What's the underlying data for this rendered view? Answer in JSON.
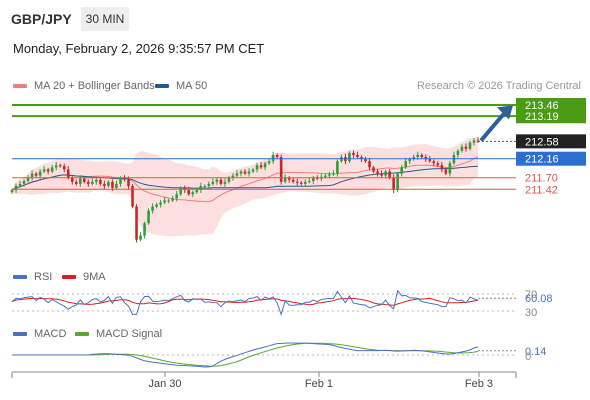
{
  "header": {
    "symbol": "GBP/JPY",
    "timeframe": "30 MIN",
    "datetime": "Monday, February 2, 2026 9:35:57 PM CET"
  },
  "legend": {
    "ma20": {
      "label": "MA 20 + Bollinger Bands",
      "color": "#f07c7c"
    },
    "ma50": {
      "label": "MA 50",
      "color": "#1f5a96"
    },
    "credit": "Research © 2026 Trading Central"
  },
  "rsi_legend": {
    "rsi": "RSI",
    "ma": "9MA"
  },
  "macd_legend": {
    "macd": "MACD",
    "signal": "MACD Signal"
  },
  "colors": {
    "up": "#2e9e3a",
    "down": "#c62828",
    "target": "#4a9c12",
    "pivot": "#2c6fd1",
    "support": "#e0554f",
    "current": "#222222",
    "arrow": "#2d5fa0"
  },
  "chart_data": [
    {
      "type": "candlestick",
      "ylim": [
        209.66,
        213.75
      ],
      "x_ticks": [
        "Jan 30",
        "Feb 1",
        "Feb 3"
      ],
      "levels": {
        "targets": [
          "213.46",
          "213.19"
        ],
        "current": "212.58",
        "pivot": "212.16",
        "supports": [
          "211.70",
          "211.42"
        ]
      },
      "closes": [
        211.4,
        211.5,
        211.55,
        211.62,
        211.7,
        211.8,
        211.75,
        211.85,
        211.9,
        211.85,
        211.95,
        212.0,
        211.98,
        211.9,
        211.7,
        211.6,
        211.55,
        211.68,
        211.6,
        211.55,
        211.6,
        211.65,
        211.55,
        211.5,
        211.6,
        211.45,
        211.55,
        211.7,
        211.65,
        211.5,
        211.0,
        210.2,
        210.3,
        210.6,
        210.9,
        211.0,
        211.05,
        211.1,
        211.15,
        211.15,
        211.2,
        211.3,
        211.45,
        211.4,
        211.3,
        211.35,
        211.4,
        211.5,
        211.5,
        211.55,
        211.6,
        211.65,
        211.55,
        211.6,
        211.7,
        211.75,
        211.8,
        211.85,
        211.8,
        211.85,
        211.9,
        212.0,
        211.95,
        212.05,
        212.1,
        212.25,
        212.2,
        211.6,
        211.7,
        211.65,
        211.6,
        211.58,
        211.55,
        211.6,
        211.62,
        211.7,
        211.68,
        211.72,
        211.75,
        211.78,
        211.8,
        212.1,
        212.2,
        212.1,
        212.3,
        212.25,
        212.2,
        212.15,
        212.1,
        211.95,
        211.85,
        211.8,
        211.75,
        211.85,
        211.7,
        211.4,
        211.8,
        211.95,
        212.1,
        212.15,
        212.2,
        212.25,
        212.2,
        212.15,
        212.1,
        212.05,
        212.0,
        211.9,
        211.8,
        212.05,
        212.25,
        212.35,
        212.45,
        212.4,
        212.55,
        212.6,
        212.58
      ]
    },
    {
      "type": "line",
      "name": "RSI",
      "series": [
        {
          "name": "RSI",
          "value": "60.08"
        }
      ],
      "levels": [
        "70",
        "30"
      ]
    },
    {
      "type": "line",
      "name": "MACD",
      "series": [
        {
          "name": "MACD",
          "value": "0.14"
        }
      ],
      "levels": [
        "0"
      ]
    }
  ]
}
